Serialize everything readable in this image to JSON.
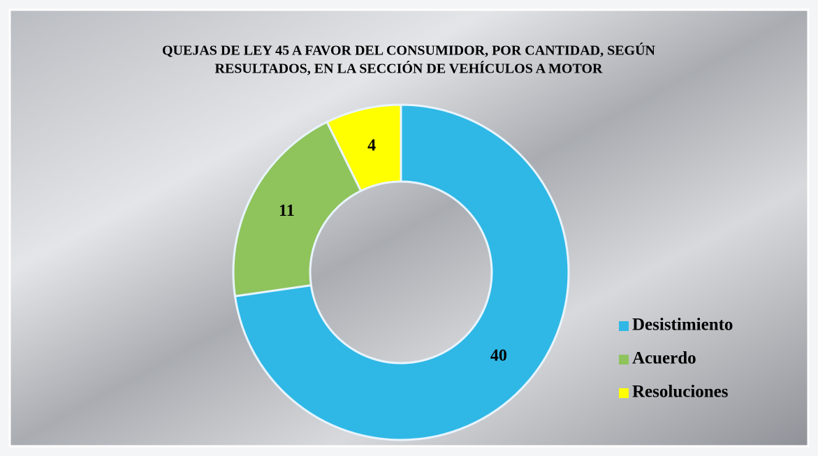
{
  "chart_data": {
    "type": "donut",
    "title": [
      "QUEJAS DE LEY 45 A FAVOR DEL CONSUMIDOR, POR CANTIDAD, SEGÚN",
      "RESULTADOS, EN LA SECCIÓN DE VEHÍCULOS A MOTOR"
    ],
    "categories": [
      "Desistimiento",
      "Acuerdo",
      "Resoluciones"
    ],
    "values": [
      40,
      11,
      4
    ],
    "colors": [
      "#2fb8e6",
      "#8fc35c",
      "#ffff00"
    ],
    "legend": "right"
  }
}
